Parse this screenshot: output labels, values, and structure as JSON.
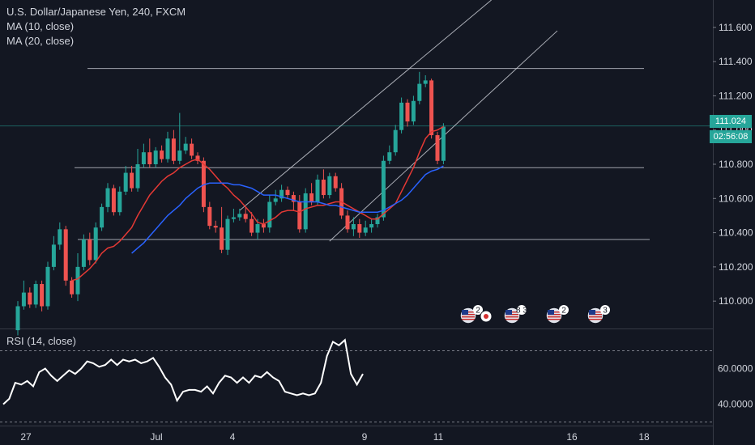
{
  "header": {
    "symbol_line": "U.S. Dollar/Japanese Yen, 240, FXCM",
    "ma10_label": "MA (10, close)",
    "ma20_label": "MA (20, close)"
  },
  "rsi_label": "RSI (14, close)",
  "price_tag": "111.024",
  "countdown_tag": "02:56:08",
  "colors": {
    "background": "#131722",
    "up": "#26a69a",
    "down": "#ef5350",
    "ma10": "#e53935",
    "ma20": "#2962ff",
    "lines": "#d1d4dc",
    "rsi": "#ffffff"
  },
  "event_badges": [
    {
      "count": "2",
      "flag_icon": "us-flag-icon",
      "extra_icon": "jp-flag-icon"
    },
    {
      "count": "8 3",
      "flag_icon": "us-flag-icon",
      "extra_icon": ""
    },
    {
      "count": "2",
      "flag_icon": "us-flag-icon",
      "extra_icon": ""
    },
    {
      "count": "3",
      "flag_icon": "us-flag-icon",
      "extra_icon": ""
    }
  ],
  "chart_data": [
    {
      "type": "candlestick",
      "title": "U.S. Dollar/Japanese Yen, 240, FXCM",
      "y_ticks": [
        "111.600",
        "111.400",
        "111.200",
        "111.000",
        "110.800",
        "110.600",
        "110.400",
        "110.200",
        "110.000"
      ],
      "x_ticks": [
        "27",
        "Jul",
        "4",
        "9",
        "11",
        "16",
        "18"
      ],
      "ylim": [
        109.84,
        111.76
      ],
      "last_price": 111.024,
      "candles": [
        [
          109.83,
          109.97,
          109.8,
          110.0
        ],
        [
          109.97,
          110.05,
          109.95,
          110.12
        ],
        [
          110.05,
          109.98,
          109.96,
          110.08
        ],
        [
          109.98,
          110.1,
          109.96,
          110.12
        ],
        [
          110.1,
          109.97,
          109.94,
          110.12
        ],
        [
          109.97,
          110.2,
          109.95,
          110.23
        ],
        [
          110.2,
          110.33,
          110.18,
          110.38
        ],
        [
          110.33,
          110.42,
          110.3,
          110.46
        ],
        [
          110.42,
          110.12,
          110.09,
          110.44
        ],
        [
          110.12,
          110.04,
          110.02,
          110.14
        ],
        [
          110.04,
          110.2,
          110.0,
          110.28
        ],
        [
          110.2,
          110.36,
          110.18,
          110.39
        ],
        [
          110.36,
          110.24,
          110.21,
          110.4
        ],
        [
          110.24,
          110.43,
          110.22,
          110.46
        ],
        [
          110.43,
          110.55,
          110.41,
          110.57
        ],
        [
          110.55,
          110.66,
          110.52,
          110.69
        ],
        [
          110.66,
          110.52,
          110.5,
          110.68
        ],
        [
          110.52,
          110.64,
          110.5,
          110.67
        ],
        [
          110.64,
          110.75,
          110.62,
          110.79
        ],
        [
          110.75,
          110.66,
          110.64,
          110.79
        ],
        [
          110.66,
          110.8,
          110.64,
          110.89
        ],
        [
          110.8,
          110.87,
          110.78,
          110.92
        ],
        [
          110.87,
          110.8,
          110.78,
          110.95
        ],
        [
          110.8,
          110.88,
          110.78,
          110.9
        ],
        [
          110.88,
          110.83,
          110.81,
          110.91
        ],
        [
          110.83,
          110.95,
          110.81,
          110.99
        ],
        [
          110.95,
          110.82,
          110.8,
          111.0
        ],
        [
          110.82,
          110.88,
          110.8,
          111.1
        ],
        [
          110.88,
          110.92,
          110.86,
          110.96
        ],
        [
          110.92,
          110.85,
          110.83,
          110.95
        ],
        [
          110.85,
          110.82,
          110.8,
          110.87
        ],
        [
          110.82,
          110.55,
          110.52,
          110.84
        ],
        [
          110.55,
          110.44,
          110.42,
          110.58
        ],
        [
          110.44,
          110.43,
          110.4,
          110.47
        ],
        [
          110.43,
          110.3,
          110.28,
          110.55
        ],
        [
          110.3,
          110.48,
          110.27,
          110.5
        ],
        [
          110.48,
          110.49,
          110.46,
          110.54
        ],
        [
          110.49,
          110.51,
          110.47,
          110.54
        ],
        [
          110.51,
          110.48,
          110.46,
          110.55
        ],
        [
          110.48,
          110.4,
          110.38,
          110.52
        ],
        [
          110.4,
          110.45,
          110.36,
          110.48
        ],
        [
          110.45,
          110.43,
          110.4,
          110.48
        ],
        [
          110.43,
          110.58,
          110.4,
          110.62
        ],
        [
          110.58,
          110.6,
          110.56,
          110.65
        ],
        [
          110.6,
          110.65,
          110.58,
          110.68
        ],
        [
          110.65,
          110.62,
          110.6,
          110.67
        ],
        [
          110.62,
          110.58,
          110.53,
          110.64
        ],
        [
          110.58,
          110.42,
          110.4,
          110.62
        ],
        [
          110.42,
          110.63,
          110.4,
          110.66
        ],
        [
          110.63,
          110.58,
          110.56,
          110.69
        ],
        [
          110.58,
          110.71,
          110.56,
          110.74
        ],
        [
          110.71,
          110.62,
          110.6,
          110.77
        ],
        [
          110.62,
          110.73,
          110.6,
          110.75
        ],
        [
          110.73,
          110.66,
          110.64,
          110.75
        ],
        [
          110.66,
          110.5,
          110.48,
          110.69
        ],
        [
          110.5,
          110.42,
          110.4,
          110.53
        ],
        [
          110.42,
          110.45,
          110.38,
          110.49
        ],
        [
          110.45,
          110.4,
          110.37,
          110.48
        ],
        [
          110.4,
          110.43,
          110.38,
          110.47
        ],
        [
          110.43,
          110.45,
          110.4,
          110.48
        ],
        [
          110.45,
          110.49,
          110.43,
          110.51
        ],
        [
          110.49,
          110.82,
          110.47,
          110.85
        ],
        [
          110.82,
          110.87,
          110.8,
          110.91
        ],
        [
          110.87,
          111.0,
          110.85,
          111.03
        ],
        [
          111.0,
          111.16,
          110.98,
          111.19
        ],
        [
          111.16,
          111.05,
          111.02,
          111.18
        ],
        [
          111.05,
          111.17,
          111.03,
          111.2
        ],
        [
          111.17,
          111.27,
          111.15,
          111.34
        ],
        [
          111.27,
          111.29,
          111.25,
          111.32
        ],
        [
          111.29,
          110.97,
          110.95,
          111.3
        ],
        [
          110.97,
          110.82,
          110.8,
          110.99
        ],
        [
          110.82,
          111.02,
          110.8,
          111.04
        ]
      ],
      "series": [
        {
          "name": "MA (10, close)",
          "values": [
            null,
            null,
            null,
            null,
            null,
            null,
            null,
            null,
            null,
            110.12,
            110.13,
            110.16,
            110.19,
            110.23,
            110.28,
            110.31,
            110.32,
            110.35,
            110.39,
            110.43,
            110.5,
            110.56,
            110.62,
            110.66,
            110.7,
            110.73,
            110.75,
            110.78,
            110.8,
            110.82,
            110.83,
            110.8,
            110.77,
            110.73,
            110.69,
            110.66,
            110.62,
            110.59,
            110.55,
            110.51,
            110.46,
            110.45,
            110.47,
            110.49,
            110.52,
            110.53,
            110.53,
            110.52,
            110.54,
            110.55,
            110.56,
            110.56,
            110.57,
            110.58,
            110.58,
            110.56,
            110.54,
            110.52,
            110.5,
            110.48,
            110.48,
            110.51,
            110.54,
            110.57,
            110.64,
            110.71,
            110.78,
            110.87,
            110.95,
            110.99,
            111.0,
            111.02
          ]
        },
        {
          "name": "MA (20, close)",
          "values": [
            null,
            null,
            null,
            null,
            null,
            null,
            null,
            null,
            null,
            null,
            null,
            null,
            null,
            null,
            null,
            null,
            null,
            null,
            null,
            110.28,
            110.31,
            110.34,
            110.38,
            110.42,
            110.46,
            110.5,
            110.53,
            110.56,
            110.6,
            110.63,
            110.66,
            110.68,
            110.69,
            110.69,
            110.69,
            110.69,
            110.68,
            110.68,
            110.67,
            110.66,
            110.64,
            110.62,
            110.62,
            110.62,
            110.61,
            110.6,
            110.59,
            110.58,
            110.58,
            110.58,
            110.58,
            110.57,
            110.56,
            110.56,
            110.55,
            110.54,
            110.53,
            110.52,
            110.52,
            110.52,
            110.52,
            110.53,
            110.55,
            110.57,
            110.59,
            110.62,
            110.66,
            110.7,
            110.74,
            110.76,
            110.77,
            110.79
          ]
        }
      ],
      "horizontal_lines": [
        111.36,
        110.78,
        110.36
      ],
      "channel_lines": [
        [
          [
            37,
            110.53
          ],
          [
            79,
            111.76
          ]
        ],
        [
          [
            52,
            110.35
          ],
          [
            90,
            111.58
          ]
        ]
      ]
    },
    {
      "type": "line",
      "title": "RSI (14, close)",
      "y_ticks": [
        "60.0000",
        "40.0000"
      ],
      "ylim": [
        28,
        82
      ],
      "bands": [
        70,
        30
      ],
      "series": [
        {
          "name": "RSI (14, close)",
          "values": [
            40,
            43,
            52,
            51,
            53,
            50,
            58,
            60,
            56,
            53,
            56,
            59,
            57,
            60,
            64,
            63,
            61,
            62,
            65,
            62,
            65,
            64,
            65,
            63,
            64,
            66,
            61,
            55,
            51,
            42,
            47,
            48,
            48,
            47,
            50,
            46,
            52,
            56,
            55,
            52,
            55,
            52,
            56,
            55,
            58,
            55,
            53,
            47,
            46,
            45,
            46,
            45,
            46,
            52,
            67,
            75,
            73,
            76,
            57,
            51,
            57
          ]
        }
      ]
    }
  ]
}
